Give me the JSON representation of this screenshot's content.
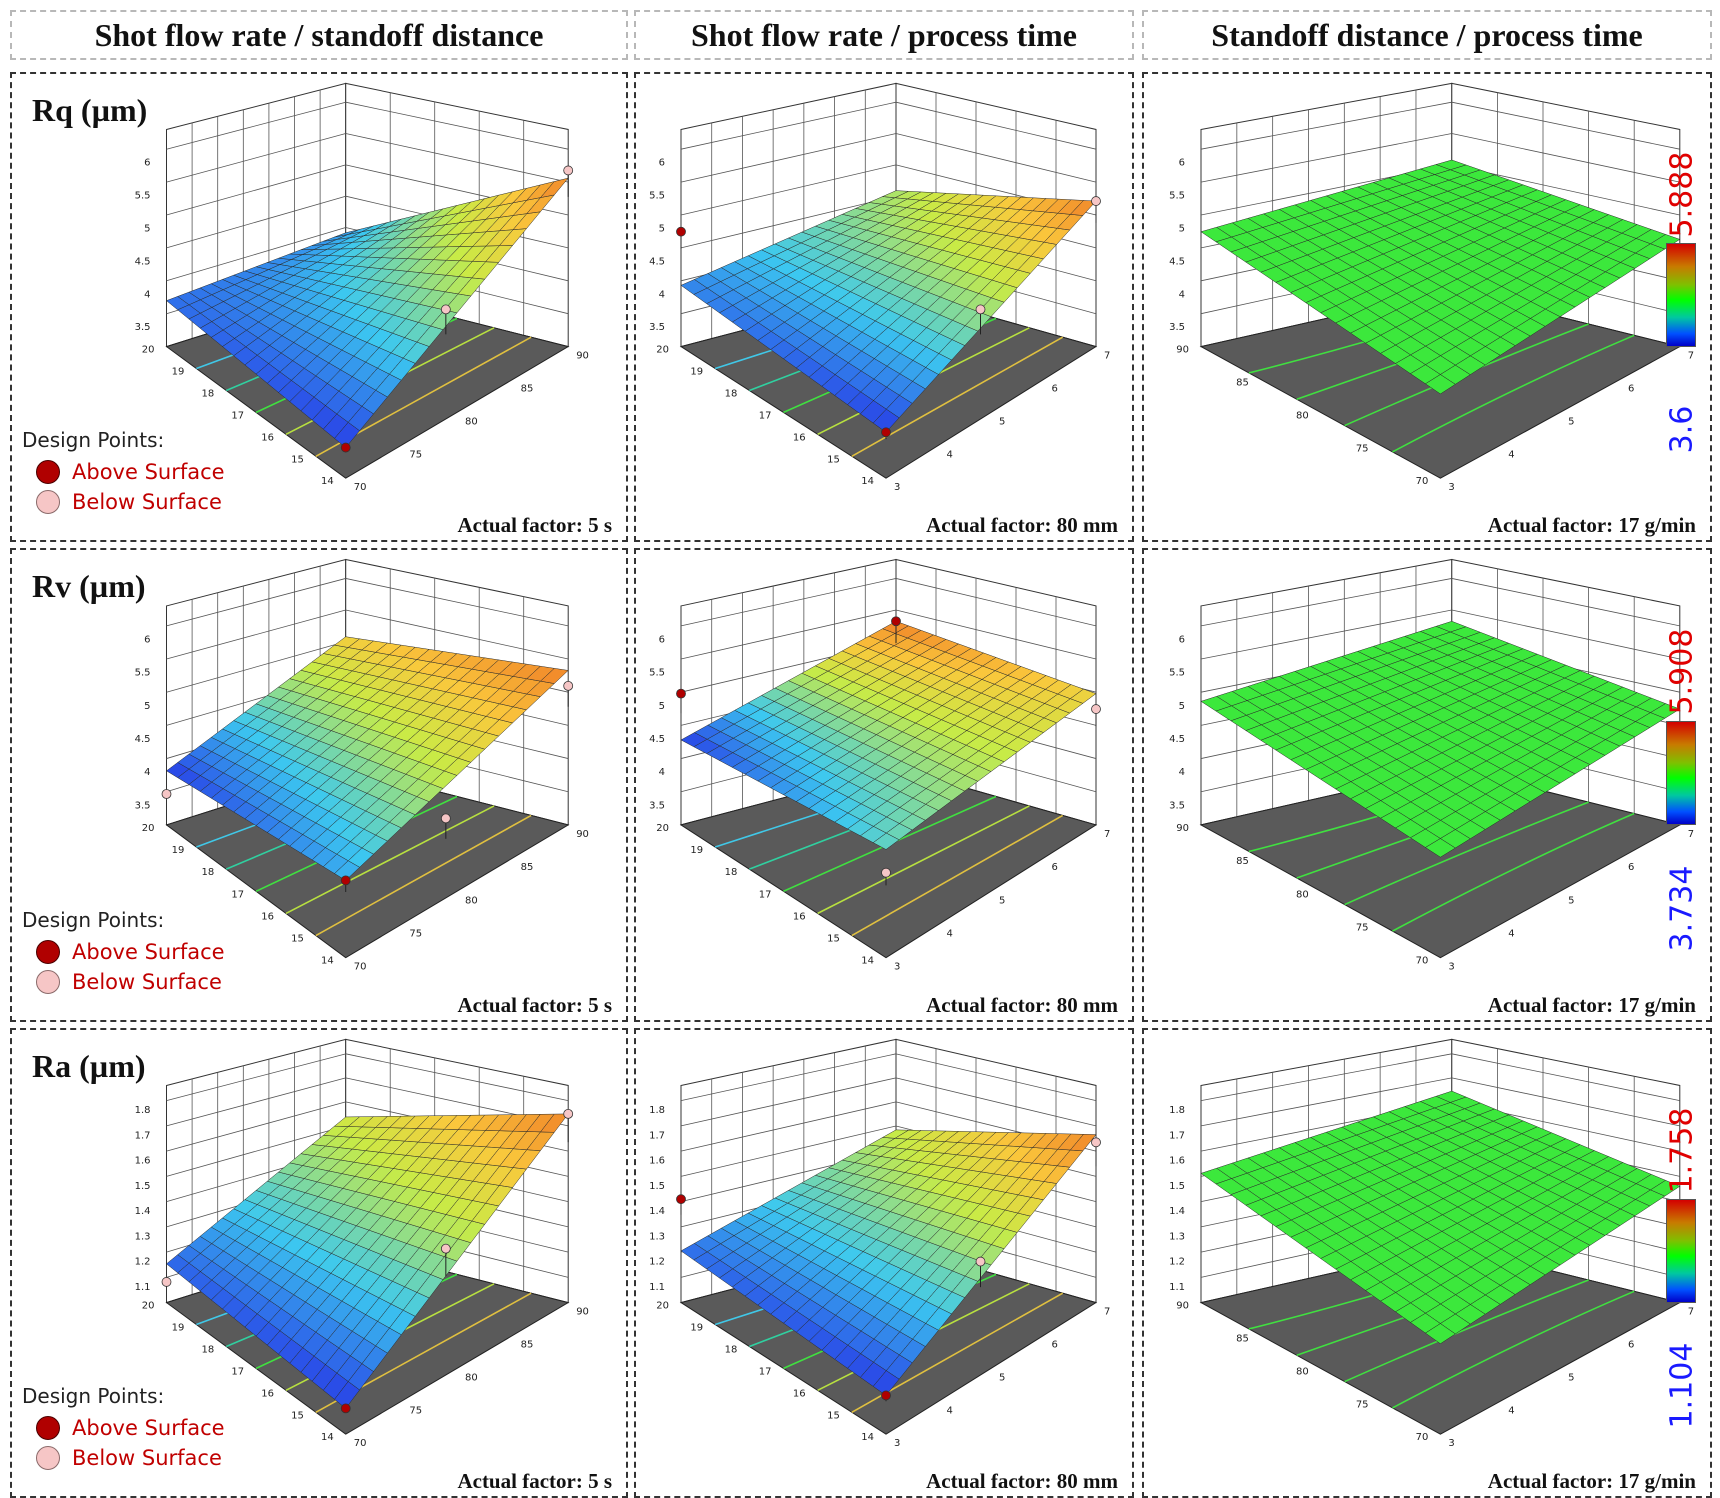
{
  "columns": [
    "Shot flow rate / standoff distance",
    "Shot flow rate / process time",
    "Standoff distance / process time"
  ],
  "legend": {
    "title": "Design Points:",
    "above": "Above Surface",
    "below": "Below Surface"
  },
  "rows": [
    {
      "label": "Rq (µm)",
      "colorbar": {
        "max": "5.888",
        "min": "3.6"
      }
    },
    {
      "label": "Rv (µm)",
      "colorbar": {
        "max": "5.908",
        "min": "3.734"
      }
    },
    {
      "label": "Ra (µm)",
      "colorbar": {
        "max": "1.758",
        "min": "1.104"
      }
    }
  ],
  "actual_factors": [
    "Actual factor: 5 s",
    "Actual factor: 80 mm",
    "Actual factor: 17 g/min"
  ],
  "colors": {
    "surface_low": "#2b7bff",
    "surface_mid": "#e8e83a",
    "surface_high": "#f08a20",
    "flat_surface": "#3ce83c",
    "floor": "#5a5a5a",
    "point_above": "#b00000",
    "point_below": "#f6c6c6"
  },
  "chart_data": [
    {
      "type": "surface3d",
      "response": "Rq",
      "x_label": "",
      "y_label": "",
      "x_ticks": [
        "20",
        "19",
        "18",
        "17",
        "16",
        "15",
        "14"
      ],
      "y_ticks": [
        "70",
        "75",
        "80",
        "85",
        "90"
      ],
      "z_ticks": [
        "3.5",
        "4",
        "4.5",
        "5",
        "5.5",
        "6"
      ],
      "zlim": [
        3.3,
        6
      ],
      "corners": {
        "back": 4.05,
        "left": 3.9,
        "front": 3.7,
        "right": 5.5
      },
      "points": [
        {
          "type": "above",
          "z": 3.7,
          "corner": "front"
        },
        {
          "type": "below",
          "z": 5.6,
          "corner": "right"
        },
        {
          "type": "below",
          "z": 4.6,
          "corner": "mid-right"
        }
      ]
    },
    {
      "type": "surface3d",
      "response": "Rq",
      "x_ticks": [
        "20",
        "19",
        "18",
        "17",
        "16",
        "15",
        "14"
      ],
      "y_ticks": [
        "3",
        "4",
        "5",
        "6",
        "7"
      ],
      "z_ticks": [
        "3.5",
        "4",
        "4.5",
        "5",
        "5.5",
        "6"
      ],
      "zlim": [
        3.3,
        6
      ],
      "corners": {
        "back": 4.6,
        "left": 4.1,
        "front": 3.9,
        "right": 5.2
      },
      "points": [
        {
          "type": "above",
          "z": 4.8,
          "corner": "left"
        },
        {
          "type": "above",
          "z": 3.9,
          "corner": "front"
        },
        {
          "type": "below",
          "z": 5.2,
          "corner": "right"
        },
        {
          "type": "below",
          "z": 4.6,
          "corner": "mid-right"
        }
      ]
    },
    {
      "type": "surface3d",
      "response": "Rq",
      "x_ticks": [
        "90",
        "85",
        "80",
        "75",
        "70"
      ],
      "y_ticks": [
        "3",
        "4",
        "5",
        "6",
        "7"
      ],
      "z_ticks": [
        "3.5",
        "4",
        "4.5",
        "5",
        "5.5",
        "6"
      ],
      "zlim": [
        3.3,
        6
      ],
      "corners": {
        "back": 5.0,
        "left": 4.8,
        "front": 4.4,
        "right": 4.7
      },
      "points": []
    },
    {
      "type": "surface3d",
      "response": "Rv",
      "x_ticks": [
        "20",
        "19",
        "18",
        "17",
        "16",
        "15",
        "14"
      ],
      "y_ticks": [
        "70",
        "75",
        "80",
        "85",
        "90"
      ],
      "z_ticks": [
        "3.5",
        "4",
        "4.5",
        "5",
        "5.5",
        "6"
      ],
      "zlim": [
        3.3,
        6
      ],
      "corners": {
        "back": 5.0,
        "left": 4.0,
        "front": 4.3,
        "right": 5.3
      },
      "points": [
        {
          "type": "above",
          "z": 4.3,
          "corner": "front"
        },
        {
          "type": "below",
          "z": 3.7,
          "corner": "left"
        },
        {
          "type": "below",
          "z": 5.1,
          "corner": "right"
        },
        {
          "type": "below",
          "z": 4.2,
          "corner": "mid-right"
        }
      ]
    },
    {
      "type": "surface3d",
      "response": "Rv",
      "x_ticks": [
        "20",
        "19",
        "18",
        "17",
        "16",
        "15",
        "14"
      ],
      "y_ticks": [
        "3",
        "4",
        "5",
        "6",
        "7"
      ],
      "z_ticks": [
        "3.5",
        "4",
        "4.5",
        "5",
        "5.5",
        "6"
      ],
      "zlim": [
        3.3,
        6
      ],
      "corners": {
        "back": 5.2,
        "left": 4.4,
        "front": 4.7,
        "right": 5.0
      },
      "points": [
        {
          "type": "above",
          "z": 5.0,
          "corner": "left"
        },
        {
          "type": "above",
          "z": 5.2,
          "corner": "back"
        },
        {
          "type": "below",
          "z": 4.4,
          "corner": "front"
        },
        {
          "type": "below",
          "z": 4.8,
          "corner": "right"
        }
      ]
    },
    {
      "type": "surface3d",
      "response": "Rv",
      "x_ticks": [
        "90",
        "85",
        "80",
        "75",
        "70"
      ],
      "y_ticks": [
        "3",
        "4",
        "5",
        "6",
        "7"
      ],
      "z_ticks": [
        "3.5",
        "4",
        "4.5",
        "5",
        "5.5",
        "6"
      ],
      "zlim": [
        3.3,
        6
      ],
      "corners": {
        "back": 5.2,
        "left": 4.9,
        "front": 4.6,
        "right": 4.8
      },
      "points": []
    },
    {
      "type": "surface3d",
      "response": "Ra",
      "x_ticks": [
        "20",
        "19",
        "18",
        "17",
        "16",
        "15",
        "14"
      ],
      "y_ticks": [
        "70",
        "75",
        "80",
        "85",
        "90"
      ],
      "z_ticks": [
        "1.1",
        "1.2",
        "1.3",
        "1.4",
        "1.5",
        "1.6",
        "1.7",
        "1.8"
      ],
      "zlim": [
        1.0,
        1.8
      ],
      "corners": {
        "back": 1.5,
        "left": 1.15,
        "front": 1.1,
        "right": 1.73
      },
      "points": [
        {
          "type": "above",
          "z": 1.1,
          "corner": "front"
        },
        {
          "type": "below",
          "z": 1.08,
          "corner": "left"
        },
        {
          "type": "below",
          "z": 1.73,
          "corner": "right"
        },
        {
          "type": "below",
          "z": 1.45,
          "corner": "mid-right"
        }
      ]
    },
    {
      "type": "surface3d",
      "response": "Ra",
      "x_ticks": [
        "20",
        "19",
        "18",
        "17",
        "16",
        "15",
        "14"
      ],
      "y_ticks": [
        "3",
        "4",
        "5",
        "6",
        "7"
      ],
      "z_ticks": [
        "1.1",
        "1.2",
        "1.3",
        "1.4",
        "1.5",
        "1.6",
        "1.7",
        "1.8"
      ],
      "zlim": [
        1.0,
        1.8
      ],
      "corners": {
        "back": 1.45,
        "left": 1.2,
        "front": 1.15,
        "right": 1.65
      },
      "points": [
        {
          "type": "above",
          "z": 1.4,
          "corner": "left"
        },
        {
          "type": "above",
          "z": 1.15,
          "corner": "front"
        },
        {
          "type": "below",
          "z": 1.62,
          "corner": "right"
        },
        {
          "type": "below",
          "z": 1.4,
          "corner": "mid-right"
        }
      ]
    },
    {
      "type": "surface3d",
      "response": "Ra",
      "x_ticks": [
        "90",
        "85",
        "80",
        "75",
        "70"
      ],
      "y_ticks": [
        "3",
        "4",
        "5",
        "6",
        "7"
      ],
      "z_ticks": [
        "1.1",
        "1.2",
        "1.3",
        "1.4",
        "1.5",
        "1.6",
        "1.7",
        "1.8"
      ],
      "zlim": [
        1.0,
        1.8
      ],
      "corners": {
        "back": 1.6,
        "left": 1.5,
        "front": 1.35,
        "right": 1.45
      },
      "points": []
    }
  ]
}
